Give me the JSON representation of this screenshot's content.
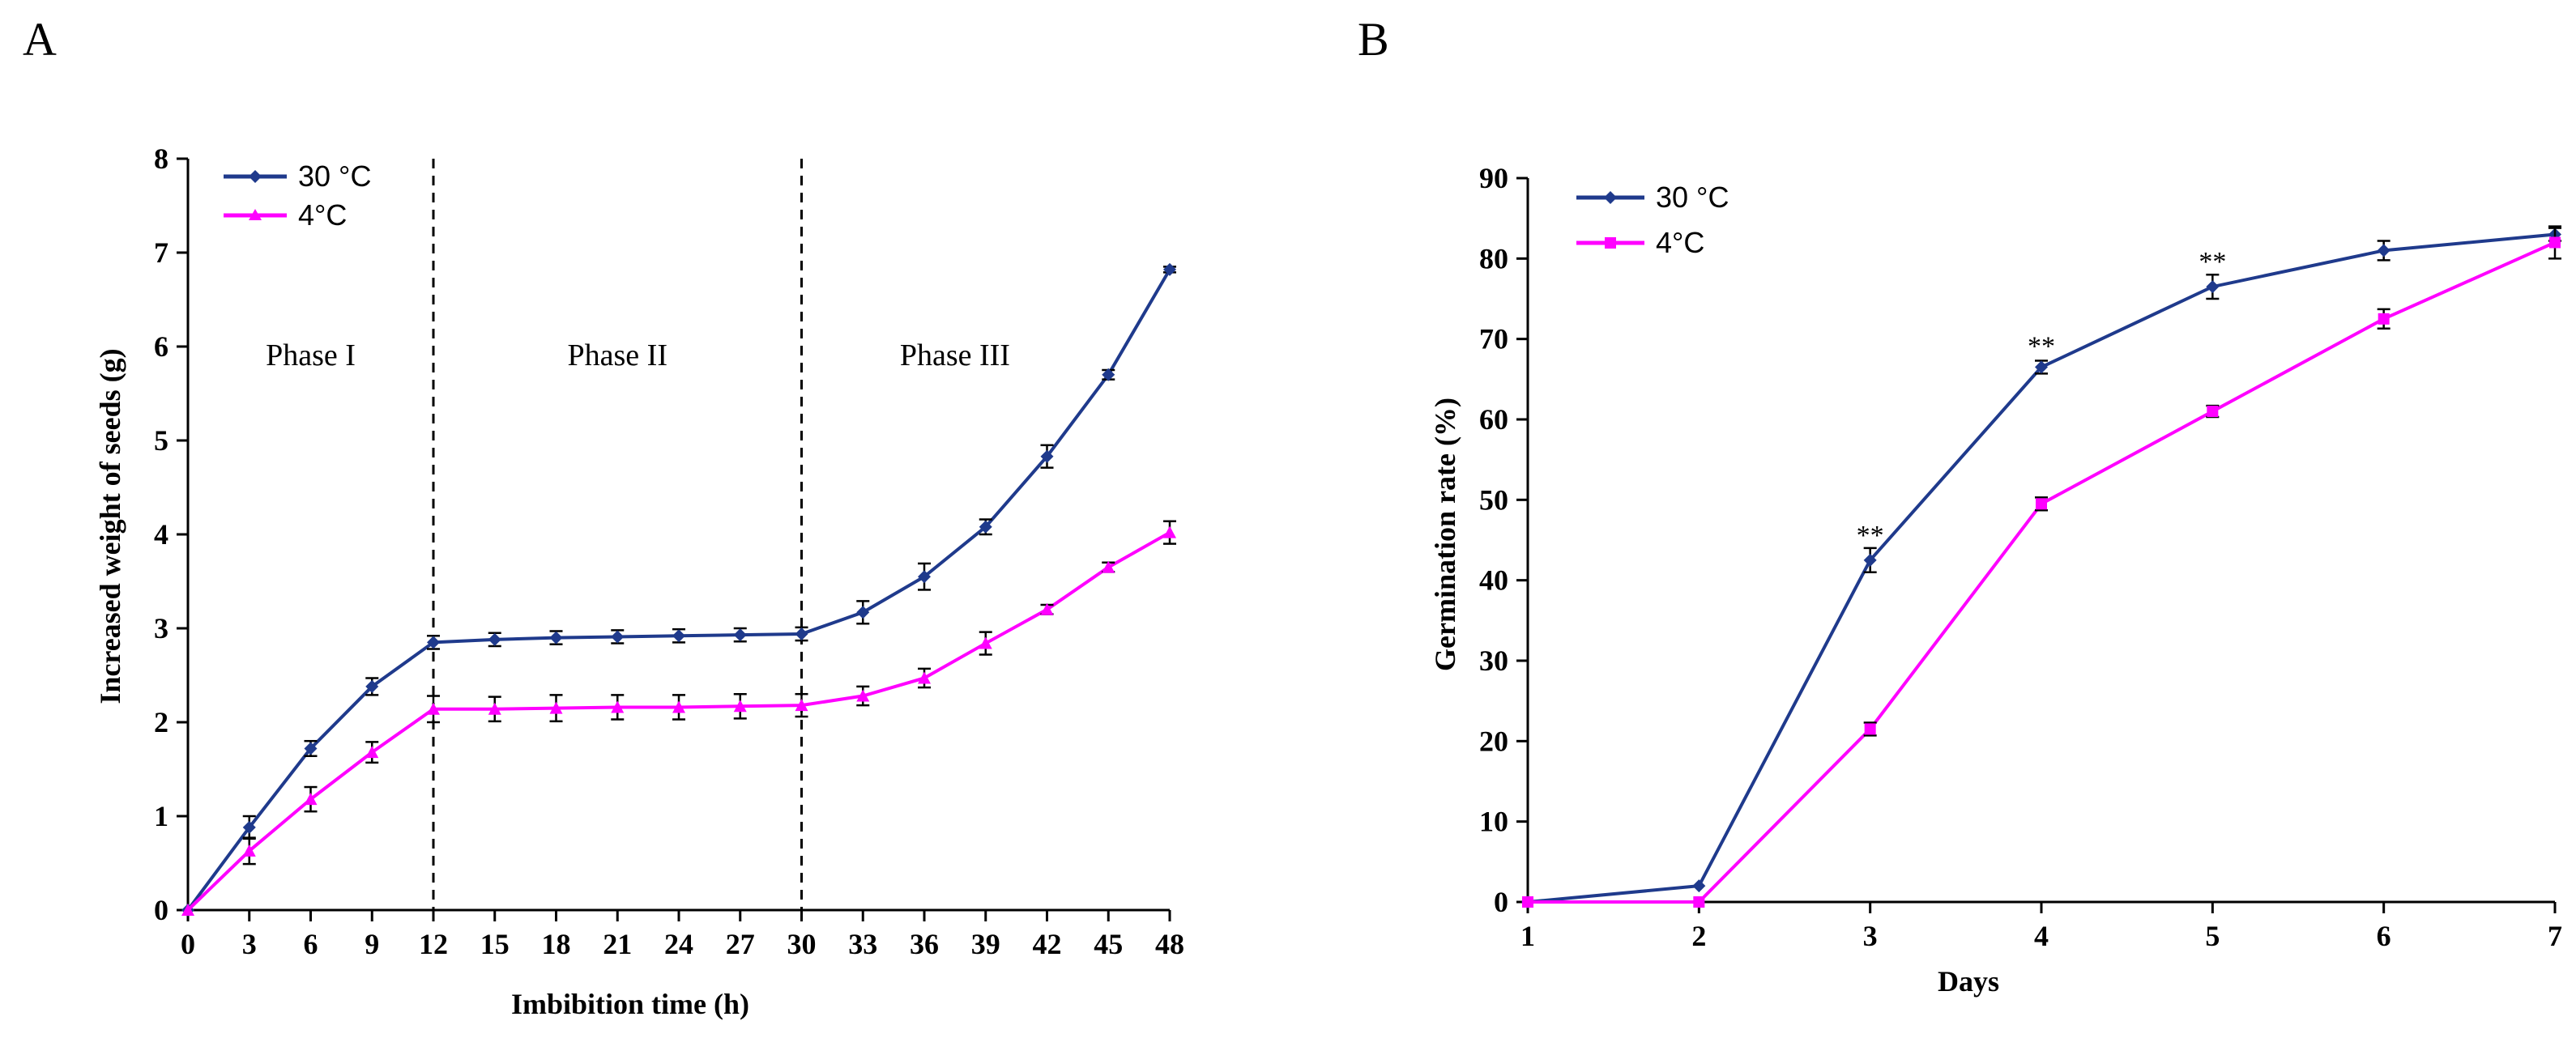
{
  "colors": {
    "s30": "#1f3a8c",
    "s4": "#ff00ff",
    "axis": "#000000"
  },
  "chart_data": [
    {
      "id": "A",
      "panel_label": "A",
      "type": "line",
      "xlabel": "Imbibition time (h)",
      "ylabel": "Increased weight of seeds (g)",
      "x": [
        0,
        3,
        6,
        9,
        12,
        15,
        18,
        21,
        24,
        27,
        30,
        33,
        36,
        39,
        42,
        45,
        48
      ],
      "xlim": [
        0,
        48
      ],
      "ylim": [
        0,
        8
      ],
      "yticks": [
        0,
        1,
        2,
        3,
        4,
        5,
        6,
        7,
        8
      ],
      "grid": false,
      "legend": "top-left",
      "series": [
        {
          "name": "30 °C",
          "marker": "diamond",
          "color": "#1f3a8c",
          "values": [
            0,
            0.88,
            1.72,
            2.38,
            2.85,
            2.88,
            2.9,
            2.91,
            2.92,
            2.93,
            2.94,
            3.17,
            3.55,
            4.08,
            4.83,
            5.7,
            6.82
          ],
          "errors": [
            0,
            0.12,
            0.08,
            0.09,
            0.07,
            0.07,
            0.07,
            0.07,
            0.07,
            0.07,
            0.07,
            0.12,
            0.14,
            0.08,
            0.12,
            0.05,
            0.03
          ]
        },
        {
          "name": "4°C",
          "marker": "triangle",
          "color": "#ff00ff",
          "values": [
            0,
            0.63,
            1.18,
            1.68,
            2.14,
            2.14,
            2.15,
            2.16,
            2.16,
            2.17,
            2.18,
            2.28,
            2.47,
            2.84,
            3.2,
            3.65,
            4.02
          ],
          "errors": [
            0,
            0.14,
            0.13,
            0.11,
            0.14,
            0.13,
            0.14,
            0.13,
            0.13,
            0.13,
            0.12,
            0.1,
            0.1,
            0.12,
            0.05,
            0.05,
            0.12
          ]
        }
      ],
      "dividers": [
        12,
        30
      ],
      "phases": [
        {
          "label": "Phase I",
          "x": 6,
          "y": 5.8
        },
        {
          "label": "Phase II",
          "x": 21,
          "y": 5.8
        },
        {
          "label": "Phase III",
          "x": 37.5,
          "y": 5.8
        }
      ],
      "annotations": []
    },
    {
      "id": "B",
      "panel_label": "B",
      "type": "line",
      "xlabel": "Days",
      "ylabel": "Germination rate (%)",
      "x": [
        1,
        2,
        3,
        4,
        5,
        6,
        7
      ],
      "xlim": [
        1,
        7
      ],
      "ylim": [
        0,
        90
      ],
      "yticks": [
        0,
        10,
        20,
        30,
        40,
        50,
        60,
        70,
        80,
        90
      ],
      "grid": false,
      "legend": "top-left",
      "series": [
        {
          "name": "30 °C",
          "marker": "diamond",
          "color": "#1f3a8c",
          "values": [
            0,
            2,
            42.5,
            66.5,
            76.5,
            81,
            83
          ],
          "errors": [
            0,
            0,
            1.5,
            0.8,
            1.5,
            1.2,
            0.8
          ]
        },
        {
          "name": "4°C",
          "marker": "square",
          "color": "#ff00ff",
          "values": [
            0,
            0,
            21.5,
            49.5,
            61,
            72.5,
            82
          ],
          "errors": [
            0,
            0,
            0.8,
            0.8,
            0.7,
            1.2,
            2
          ]
        }
      ],
      "dividers": [],
      "phases": [],
      "annotations": [
        {
          "text": "**",
          "x": 3,
          "y": 44.5
        },
        {
          "text": "**",
          "x": 4,
          "y": 68
        },
        {
          "text": "**",
          "x": 5,
          "y": 78.5
        }
      ]
    }
  ]
}
